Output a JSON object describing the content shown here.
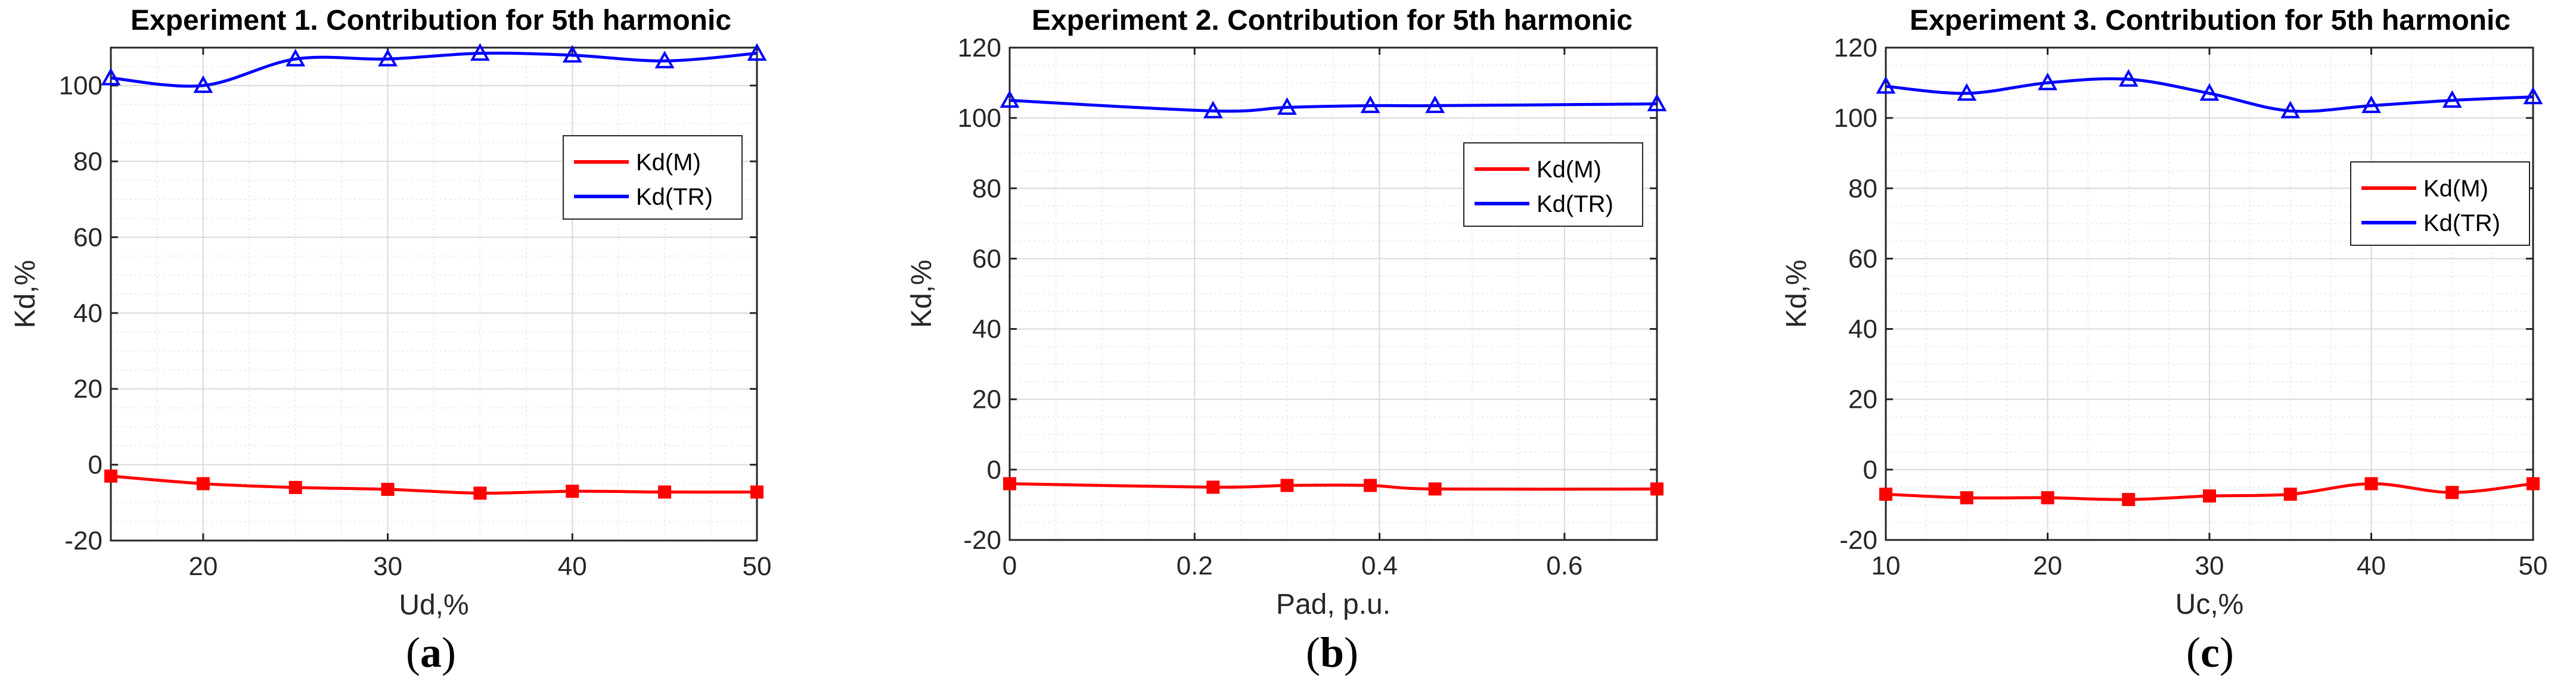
{
  "colors": {
    "m": "#ff0000",
    "tr": "#0000ff",
    "grid": "#d9d9d9",
    "axis": "#262626"
  },
  "chart_data": [
    {
      "type": "line",
      "title": "Experiment 1. Contribution for 5th harmonic",
      "xlabel": "Ud,%",
      "ylabel": "Kd,%",
      "xlim": [
        15,
        50
      ],
      "ylim": [
        -20,
        110
      ],
      "xticks": [
        20,
        30,
        40,
        50
      ],
      "xtick_labels": [
        "20",
        "30",
        "40",
        "50"
      ],
      "yticks": [
        -20,
        0,
        20,
        40,
        60,
        80,
        100
      ],
      "ytick_labels": [
        "-20",
        "0",
        "20",
        "40",
        "60",
        "80",
        "100"
      ],
      "legend": "upper-right",
      "panel_label": {
        "open": "(",
        "letter": "a",
        "close": ")"
      },
      "series": [
        {
          "name": "Kd(M)",
          "color": "#ff0000",
          "marker": "square",
          "x": [
            15,
            20,
            25,
            30,
            35,
            40,
            45,
            50
          ],
          "y": [
            -3,
            -5,
            -6,
            -6.5,
            -7.5,
            -7,
            -7.2,
            -7.2
          ]
        },
        {
          "name": "Kd(TR)",
          "color": "#0000ff",
          "marker": "triangle",
          "x": [
            15,
            20,
            25,
            30,
            35,
            40,
            45,
            50
          ],
          "y": [
            102,
            100,
            107,
            107,
            108.5,
            108,
            106.5,
            108.5
          ]
        }
      ]
    },
    {
      "type": "line",
      "title": "Experiment 2. Contribution for 5th harmonic",
      "xlabel": "Pad, p.u.",
      "ylabel": "Kd,%",
      "xlim": [
        0,
        0.7
      ],
      "ylim": [
        -20,
        120
      ],
      "xticks": [
        0,
        0.2,
        0.4,
        0.6
      ],
      "xtick_labels": [
        "0",
        "0.2",
        "0.4",
        "0.6"
      ],
      "yticks": [
        -20,
        0,
        20,
        40,
        60,
        80,
        100,
        120
      ],
      "ytick_labels": [
        "-20",
        "0",
        "20",
        "40",
        "60",
        "80",
        "100",
        "120"
      ],
      "legend": "upper-right",
      "panel_label": {
        "open": "(",
        "letter": "b",
        "close": ")"
      },
      "series": [
        {
          "name": "Kd(M)",
          "color": "#ff0000",
          "marker": "square",
          "x": [
            0,
            0.22,
            0.3,
            0.39,
            0.46,
            0.7
          ],
          "y": [
            -4,
            -5,
            -4.5,
            -4.5,
            -5.5,
            -5.5
          ]
        },
        {
          "name": "Kd(TR)",
          "color": "#0000ff",
          "marker": "triangle",
          "x": [
            0,
            0.22,
            0.3,
            0.39,
            0.46,
            0.7
          ],
          "y": [
            105,
            102,
            103,
            103.5,
            103.5,
            104
          ]
        }
      ]
    },
    {
      "type": "line",
      "title": "Experiment 3. Contribution for 5th harmonic",
      "xlabel": "Uc,%",
      "ylabel": "Kd,%",
      "xlim": [
        10,
        50
      ],
      "ylim": [
        -20,
        120
      ],
      "xticks": [
        10,
        20,
        30,
        40,
        50
      ],
      "xtick_labels": [
        "10",
        "20",
        "30",
        "40",
        "50"
      ],
      "yticks": [
        -20,
        0,
        20,
        40,
        60,
        80,
        100,
        120
      ],
      "ytick_labels": [
        "-20",
        "0",
        "20",
        "40",
        "60",
        "80",
        "100",
        "120"
      ],
      "legend": "upper-right",
      "panel_label": {
        "open": "(",
        "letter": "c",
        "close": ")"
      },
      "series": [
        {
          "name": "Kd(M)",
          "color": "#ff0000",
          "marker": "square",
          "x": [
            10,
            15,
            20,
            25,
            30,
            35,
            40,
            45,
            50
          ],
          "y": [
            -7,
            -8,
            -8,
            -8.5,
            -7.5,
            -7,
            -4,
            -6.5,
            -4
          ]
        },
        {
          "name": "Kd(TR)",
          "color": "#0000ff",
          "marker": "triangle",
          "x": [
            10,
            15,
            20,
            25,
            30,
            35,
            40,
            45,
            50
          ],
          "y": [
            109,
            107,
            110,
            111,
            107,
            102,
            103.5,
            105,
            106
          ]
        }
      ]
    }
  ]
}
